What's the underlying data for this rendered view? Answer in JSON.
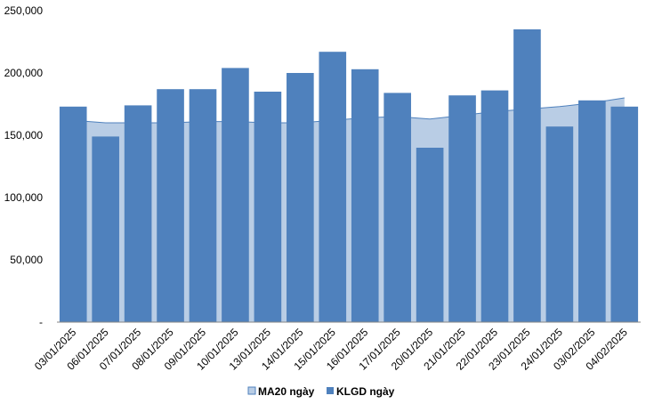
{
  "chart_data": {
    "type": "bar",
    "categories": [
      "03/01/2025",
      "06/01/2025",
      "07/01/2025",
      "08/01/2025",
      "09/01/2025",
      "10/01/2025",
      "13/01/2025",
      "14/01/2025",
      "15/01/2025",
      "16/01/2025",
      "17/01/2025",
      "20/01/2025",
      "21/01/2025",
      "22/01/2025",
      "23/01/2025",
      "24/01/2025",
      "03/02/2025",
      "04/02/2025"
    ],
    "series": [
      {
        "name": "KLGD ngày",
        "kind": "bar",
        "color": "#4f81bd",
        "values": [
          173000,
          149000,
          174000,
          187000,
          187000,
          204000,
          185000,
          200000,
          217000,
          203000,
          184000,
          140000,
          182000,
          186000,
          235000,
          157000,
          178000,
          173000
        ]
      },
      {
        "name": "MA20 ngày",
        "kind": "area",
        "color": "#b9cde5",
        "line_color": "#4f81bd",
        "values": [
          162000,
          160000,
          160000,
          160000,
          161000,
          161000,
          160000,
          160000,
          162000,
          164000,
          165000,
          163000,
          166000,
          169000,
          171000,
          173000,
          176000,
          180000
        ]
      }
    ],
    "ylim": [
      0,
      250000
    ],
    "yticks": [
      0,
      50000,
      100000,
      150000,
      200000,
      250000
    ],
    "ytick_labels": [
      "-",
      "50,000",
      "100,000",
      "150,000",
      "200,000",
      "250,000"
    ],
    "title": "",
    "xlabel": "",
    "ylabel": "",
    "grid": false,
    "legend_position": "bottom",
    "legend": [
      {
        "label": "MA20 ngày",
        "color": "#b9cde5"
      },
      {
        "label": "KLGD ngày",
        "color": "#4f81bd"
      }
    ]
  }
}
